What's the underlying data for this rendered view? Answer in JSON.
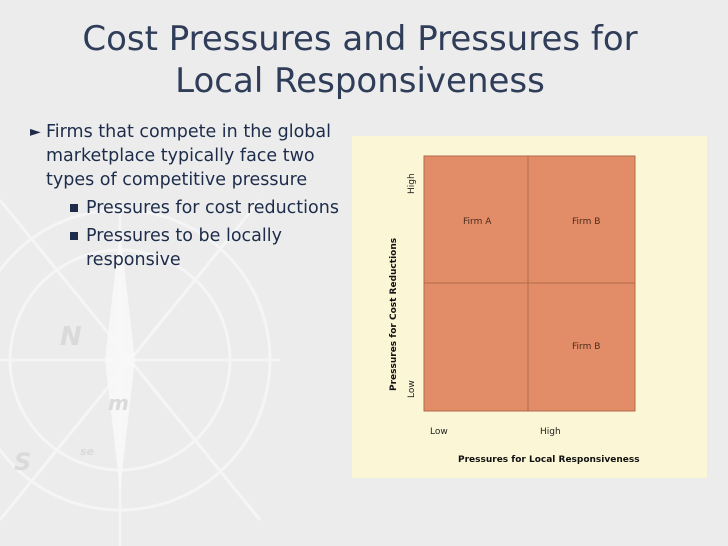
{
  "title": {
    "line1": "Cost Pressures and Pressures for",
    "line2": "Local Responsiveness"
  },
  "bullets": {
    "main": "Firms that compete in the global marketplace typically face two types of competitive pressure",
    "sub": [
      "Pressures for cost reductions",
      "Pressures to be locally responsive"
    ]
  },
  "figure": {
    "y_label": "Pressures for Cost Reductions",
    "x_label": "Pressures for Local Responsiveness",
    "y_high": "High",
    "y_low": "Low",
    "x_low": "Low",
    "x_high": "High",
    "cells": {
      "top_left": "Firm A",
      "top_right": "Firm B",
      "bottom_left": "",
      "bottom_right": "Firm B"
    },
    "cell_color": "#e38d68",
    "background_color": "#fbf6d6"
  },
  "background": {
    "compass_letters": [
      "N",
      "S",
      "m",
      "se"
    ]
  },
  "icons": {
    "arrow": "right-triangle-bullet-icon",
    "square": "square-bullet-icon"
  }
}
